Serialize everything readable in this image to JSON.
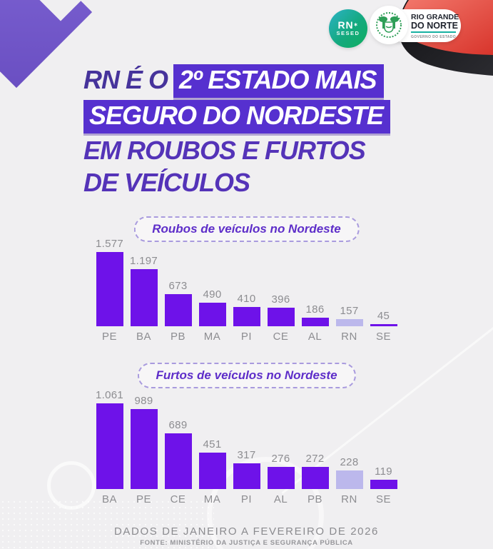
{
  "page": {
    "background_color": "#f0eff1",
    "accent_purple": "#6e12e9",
    "highlight_box_purple": "#5630cf",
    "title_dark_purple": "#46339b",
    "light_purple": "#bcb8ec"
  },
  "logos": {
    "sesed": {
      "line1": "RN",
      "mark": "✶",
      "line2": "SESED"
    },
    "government": {
      "line1": "RIO GRANDE",
      "line2": "DO NORTE",
      "line3": "GOVERNO DO ESTADO"
    }
  },
  "title": {
    "prefix": "RN É O",
    "highlight1": "2º ESTADO MAIS",
    "highlight2": "SEGURO DO NORDESTE",
    "line3": "EM ROUBOS E FURTOS",
    "line4": "DE VEÍCULOS"
  },
  "footer": {
    "line1": "DADOS DE JANEIRO A FEVEREIRO DE 2026",
    "line2": "FONTE: MINISTÉRIO DA JUSTIÇA E SEGURANÇA PÚBLICA"
  },
  "chart_data": [
    {
      "type": "bar",
      "title": "Roubos de veículos no Nordeste",
      "categories": [
        "PE",
        "BA",
        "PB",
        "MA",
        "PI",
        "CE",
        "AL",
        "RN",
        "SE"
      ],
      "values": [
        1577,
        1197,
        673,
        490,
        410,
        396,
        186,
        157,
        45
      ],
      "labels": [
        "1.577",
        "1.197",
        "673",
        "490",
        "410",
        "396",
        "186",
        "157",
        "45"
      ],
      "highlight_category": "RN",
      "bar_color": "#6e12e9",
      "highlight_color": "#bcb8ec",
      "xlabel": "",
      "ylabel": "",
      "grid": false,
      "legend": false
    },
    {
      "type": "bar",
      "title": "Furtos de veículos no Nordeste",
      "categories": [
        "BA",
        "PE",
        "CE",
        "MA",
        "PI",
        "AL",
        "PB",
        "RN",
        "SE"
      ],
      "values": [
        1061,
        989,
        689,
        451,
        317,
        276,
        272,
        228,
        119
      ],
      "labels": [
        "1.061",
        "989",
        "689",
        "451",
        "317",
        "276",
        "272",
        "228",
        "119"
      ],
      "highlight_category": "RN",
      "bar_color": "#6e12e9",
      "highlight_color": "#bcb8ec",
      "xlabel": "",
      "ylabel": "",
      "grid": false,
      "legend": false
    }
  ]
}
